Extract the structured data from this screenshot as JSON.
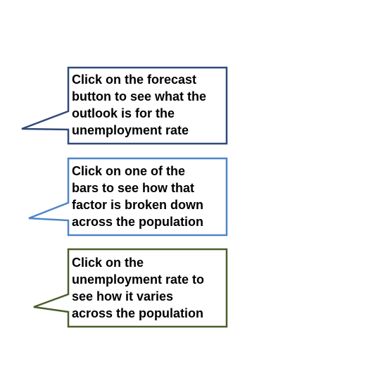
{
  "callouts": [
    {
      "id": "forecast",
      "lines": [
        "Click on the forecast",
        "button to see what the",
        "outlook is for the",
        "unemployment  rate"
      ],
      "border_color": "#2E4A7A"
    },
    {
      "id": "bars",
      "lines": [
        "Click on one of the",
        "bars to see how that",
        "factor is broken down",
        "across the population"
      ],
      "border_color": "#4F86C6"
    },
    {
      "id": "unemployment",
      "lines": [
        "Click on the",
        "unemployment  rate to",
        "see how it varies",
        "across the population"
      ],
      "border_color": "#4A5E2A"
    }
  ]
}
